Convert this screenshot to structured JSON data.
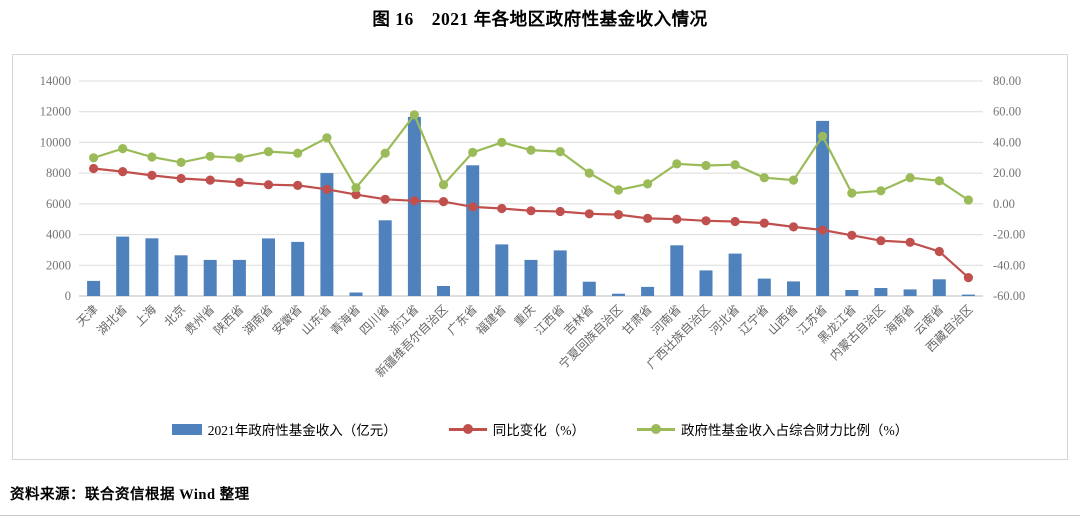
{
  "page": {
    "title": "图 16　2021 年各地区政府性基金收入情况",
    "source_note": "资料来源：联合资信根据 Wind 整理"
  },
  "chart_data": {
    "type": "bar",
    "subtype": "combo-bar-line",
    "title": "图 16　2021 年各地区政府性基金收入情况",
    "grid": true,
    "legend_position": "bottom",
    "categories": [
      "天津",
      "湖北省",
      "上海",
      "北京",
      "贵州省",
      "陕西省",
      "湖南省",
      "安徽省",
      "山东省",
      "青海省",
      "四川省",
      "浙江省",
      "新疆维吾尔自治区",
      "广东省",
      "福建省",
      "重庆",
      "江西省",
      "吉林省",
      "宁夏回族自治区",
      "甘肃省",
      "河南省",
      "广西壮族自治区",
      "河北省",
      "辽宁省",
      "山西省",
      "江苏省",
      "黑龙江省",
      "内蒙古自治区",
      "海南省",
      "云南省",
      "西藏自治区"
    ],
    "series": [
      {
        "name": "2021年政府性基金收入（亿元）",
        "type": "bar",
        "axis": "left",
        "color": "#4f81bd",
        "values": [
          980,
          3870,
          3760,
          2650,
          2350,
          2350,
          3750,
          3520,
          8000,
          230,
          4930,
          11660,
          650,
          8510,
          3360,
          2350,
          2970,
          930,
          150,
          590,
          3300,
          1670,
          2760,
          1130,
          950,
          11400,
          390,
          520,
          430,
          1090,
          90
        ]
      },
      {
        "name": "同比变化（%）",
        "type": "line",
        "axis": "right",
        "color": "#c0504d",
        "values": [
          23,
          21,
          18.5,
          16.5,
          15.5,
          14,
          12.5,
          12,
          9.5,
          6,
          3,
          2,
          1.5,
          -2,
          -3,
          -4.5,
          -5,
          -6.5,
          -7,
          -9.5,
          -10,
          -11,
          -11.5,
          -12.5,
          -15,
          -17,
          -20.5,
          -24,
          -25,
          -31,
          -48
        ]
      },
      {
        "name": "政府性基金收入占综合财力比例（%）",
        "type": "line",
        "axis": "right",
        "color": "#9bbb59",
        "values": [
          30,
          36,
          30.5,
          27,
          31,
          30,
          34,
          33,
          43,
          10.5,
          33,
          58,
          12.5,
          33.5,
          40,
          35,
          34,
          20,
          9,
          13,
          26,
          25,
          25.5,
          17,
          15.5,
          44,
          7,
          8.5,
          17,
          15,
          2.5
        ]
      }
    ],
    "left_axis": {
      "min": 0,
      "max": 14000,
      "step": 2000,
      "ticks": [
        "0",
        "2000",
        "4000",
        "6000",
        "8000",
        "10000",
        "12000",
        "14000"
      ]
    },
    "right_axis": {
      "min": -60,
      "max": 80,
      "step": 20,
      "ticks": [
        "-60.00",
        "-40.00",
        "-20.00",
        "0.00",
        "20.00",
        "40.00",
        "60.00",
        "80.00"
      ]
    },
    "colors": {
      "grid": "#dcdcdc",
      "baseline": "#bdbdbd",
      "tick_text": "#757575"
    }
  }
}
